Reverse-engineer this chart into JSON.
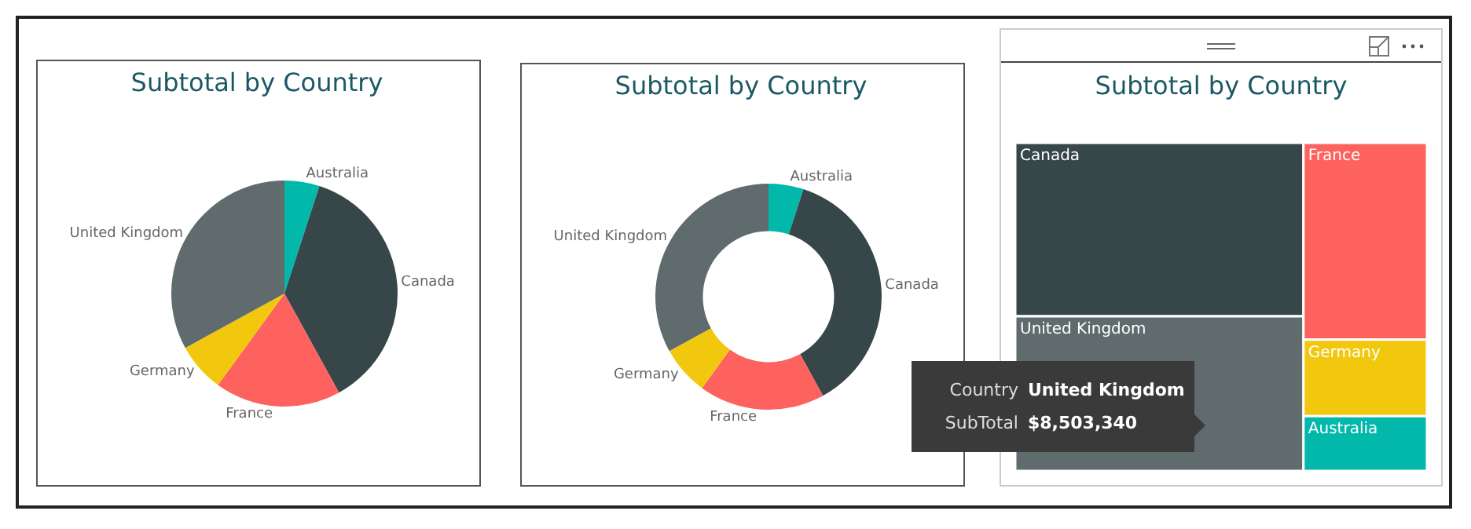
{
  "chart_data": [
    {
      "type": "pie",
      "title": "Subtotal by Country",
      "categories": [
        "Australia",
        "Canada",
        "France",
        "Germany",
        "United Kingdom"
      ],
      "values": [
        5,
        37,
        18,
        7,
        33
      ],
      "colors": [
        "#01b8aa",
        "#374649",
        "#fd625e",
        "#f2c80f",
        "#5f6b6d"
      ]
    },
    {
      "type": "donut",
      "title": "Subtotal by Country",
      "categories": [
        "Australia",
        "Canada",
        "France",
        "Germany",
        "United Kingdom"
      ],
      "values": [
        5,
        37,
        18,
        7,
        33
      ],
      "colors": [
        "#01b8aa",
        "#374649",
        "#fd625e",
        "#f2c80f",
        "#5f6b6d"
      ]
    },
    {
      "type": "other",
      "title": "Subtotal by Country",
      "categories": [
        "Canada",
        "France",
        "United Kingdom",
        "Germany",
        "Australia"
      ],
      "colors": [
        "#374649",
        "#fd625e",
        "#5f6b6d",
        "#f2c80f",
        "#01b8aa"
      ],
      "annotations": [
        "Country",
        "United Kingdom",
        "SubTotal",
        "$8,503,340"
      ]
    }
  ]
}
